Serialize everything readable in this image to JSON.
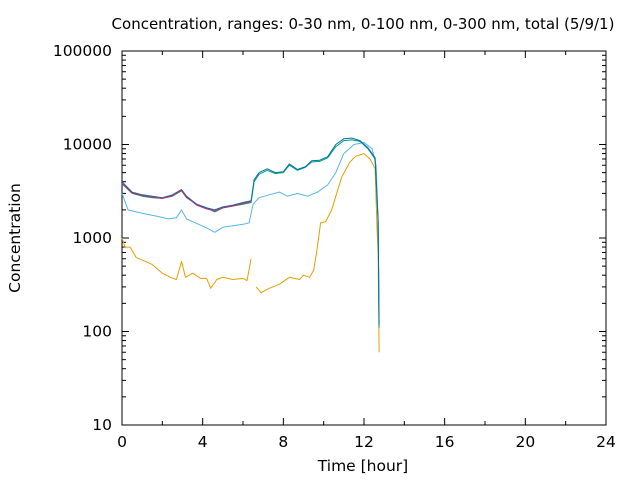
{
  "chart_data": {
    "type": "line",
    "title": "Concentration, ranges: 0-30 nm, 0-100 nm, 0-300 nm, total (5/9/1)",
    "xlabel": "Time [hour]",
    "ylabel": "Concentration",
    "xlim": [
      0,
      24
    ],
    "ylim": [
      10,
      100000
    ],
    "yscale": "log",
    "grid": false,
    "legend": "none",
    "x_ticks": [
      "0",
      "4",
      "8",
      "12",
      "16",
      "20",
      "24"
    ],
    "x_tick_values": [
      0,
      4,
      8,
      12,
      16,
      20,
      24
    ],
    "y_ticks": [
      "10",
      "100",
      "1000",
      "10000",
      "100000"
    ],
    "y_tick_values": [
      10,
      100,
      1000,
      10000,
      100000
    ],
    "series": [
      {
        "color": "#e69f00",
        "segments": [
          [
            [
              0,
              1000
            ],
            [
              0.15,
              800
            ],
            [
              0.4,
              800
            ],
            [
              0.7,
              620
            ],
            [
              1.0,
              580
            ],
            [
              1.5,
              520
            ],
            [
              2.0,
              420
            ],
            [
              2.4,
              380
            ],
            [
              2.7,
              360
            ],
            [
              2.95,
              560
            ],
            [
              3.15,
              380
            ],
            [
              3.5,
              420
            ],
            [
              3.9,
              370
            ],
            [
              4.2,
              370
            ],
            [
              4.4,
              290
            ],
            [
              4.7,
              360
            ],
            [
              5.0,
              380
            ],
            [
              5.5,
              360
            ],
            [
              6.0,
              370
            ],
            [
              6.2,
              350
            ],
            [
              6.4,
              600
            ]
          ],
          [
            [
              6.65,
              300
            ],
            [
              6.9,
              260
            ],
            [
              7.3,
              290
            ],
            [
              7.8,
              320
            ],
            [
              8.3,
              380
            ],
            [
              8.8,
              360
            ],
            [
              9.0,
              400
            ],
            [
              9.3,
              380
            ],
            [
              9.5,
              450
            ],
            [
              9.65,
              700
            ],
            [
              9.85,
              1450
            ],
            [
              10.1,
              1500
            ],
            [
              10.4,
              2000
            ],
            [
              10.6,
              2800
            ],
            [
              10.9,
              4500
            ],
            [
              11.3,
              6500
            ],
            [
              11.6,
              7500
            ],
            [
              12.0,
              8000
            ],
            [
              12.3,
              7000
            ],
            [
              12.55,
              5500
            ],
            [
              12.65,
              1200
            ],
            [
              12.7,
              700
            ],
            [
              12.75,
              60
            ]
          ]
        ]
      },
      {
        "color": "#56b4e9",
        "segments": [
          [
            [
              0,
              3000
            ],
            [
              0.3,
              2000
            ],
            [
              0.7,
              1900
            ],
            [
              1.2,
              1800
            ],
            [
              1.8,
              1700
            ],
            [
              2.3,
              1600
            ],
            [
              2.7,
              1650
            ],
            [
              2.95,
              2000
            ],
            [
              3.2,
              1600
            ],
            [
              3.8,
              1400
            ],
            [
              4.3,
              1250
            ],
            [
              4.6,
              1150
            ],
            [
              5.0,
              1300
            ],
            [
              5.5,
              1350
            ],
            [
              6.0,
              1400
            ],
            [
              6.3,
              1450
            ],
            [
              6.5,
              2300
            ],
            [
              6.8,
              2700
            ],
            [
              7.3,
              2900
            ],
            [
              7.8,
              3100
            ],
            [
              8.2,
              2800
            ],
            [
              8.7,
              3000
            ],
            [
              9.2,
              2800
            ],
            [
              9.7,
              3100
            ],
            [
              10.2,
              3700
            ],
            [
              10.6,
              5000
            ],
            [
              11.0,
              8000
            ],
            [
              11.5,
              10000
            ],
            [
              12.0,
              10500
            ],
            [
              12.4,
              9000
            ],
            [
              12.6,
              6000
            ],
            [
              12.7,
              1500
            ],
            [
              12.75,
              150
            ]
          ]
        ]
      },
      {
        "color": "#009e73",
        "segments": [
          [
            [
              0,
              3800
            ],
            [
              0.5,
              3000
            ],
            [
              1.0,
              2800
            ],
            [
              1.5,
              2700
            ],
            [
              2.0,
              2650
            ],
            [
              2.5,
              2800
            ],
            [
              2.95,
              3200
            ],
            [
              3.2,
              2700
            ],
            [
              3.7,
              2300
            ],
            [
              4.2,
              2100
            ],
            [
              4.6,
              1900
            ],
            [
              5.0,
              2100
            ],
            [
              5.5,
              2200
            ],
            [
              6.0,
              2300
            ],
            [
              6.4,
              2400
            ],
            [
              6.55,
              4000
            ],
            [
              6.8,
              4800
            ],
            [
              7.2,
              5300
            ],
            [
              7.6,
              4900
            ],
            [
              8.0,
              5000
            ],
            [
              8.3,
              6000
            ],
            [
              8.7,
              5300
            ],
            [
              9.1,
              5700
            ],
            [
              9.4,
              6500
            ],
            [
              9.8,
              6600
            ],
            [
              10.2,
              7200
            ],
            [
              10.6,
              9500
            ],
            [
              11.0,
              11000
            ],
            [
              11.4,
              11200
            ],
            [
              11.8,
              10800
            ],
            [
              12.2,
              9000
            ],
            [
              12.55,
              7000
            ],
            [
              12.7,
              1500
            ],
            [
              12.75,
              110
            ]
          ]
        ]
      },
      {
        "color": "#0072b2",
        "segments": [
          [
            [
              0,
              4000
            ],
            [
              0.5,
              3100
            ],
            [
              1.0,
              2900
            ],
            [
              1.5,
              2800
            ],
            [
              2.0,
              2700
            ],
            [
              2.5,
              2900
            ],
            [
              2.95,
              3300
            ],
            [
              3.2,
              2800
            ],
            [
              3.7,
              2300
            ],
            [
              4.2,
              2100
            ],
            [
              4.6,
              2000
            ],
            [
              5.0,
              2150
            ],
            [
              5.5,
              2250
            ],
            [
              6.0,
              2400
            ],
            [
              6.4,
              2500
            ],
            [
              6.55,
              4200
            ],
            [
              6.8,
              5000
            ],
            [
              7.2,
              5500
            ],
            [
              7.6,
              5000
            ],
            [
              8.0,
              5100
            ],
            [
              8.3,
              6200
            ],
            [
              8.7,
              5400
            ],
            [
              9.1,
              5800
            ],
            [
              9.4,
              6700
            ],
            [
              9.8,
              6800
            ],
            [
              10.2,
              7400
            ],
            [
              10.6,
              10000
            ],
            [
              11.0,
              11500
            ],
            [
              11.4,
              11700
            ],
            [
              11.8,
              11000
            ],
            [
              12.2,
              9200
            ],
            [
              12.55,
              7200
            ],
            [
              12.7,
              1600
            ],
            [
              12.75,
              120
            ]
          ]
        ]
      },
      {
        "color": "#cc2266",
        "segments": [
          [
            [
              0,
              3850
            ],
            [
              0.5,
              3050
            ],
            [
              1.0,
              2850
            ],
            [
              1.5,
              2750
            ],
            [
              2.0,
              2650
            ],
            [
              2.5,
              2850
            ],
            [
              2.95,
              3250
            ],
            [
              3.2,
              2750
            ],
            [
              3.7,
              2250
            ],
            [
              4.2,
              2050
            ],
            [
              4.6,
              1950
            ],
            [
              5.0,
              2100
            ],
            [
              5.5,
              2200
            ],
            [
              6.0,
              2350
            ],
            [
              6.4,
              2450
            ]
          ]
        ]
      }
    ]
  }
}
